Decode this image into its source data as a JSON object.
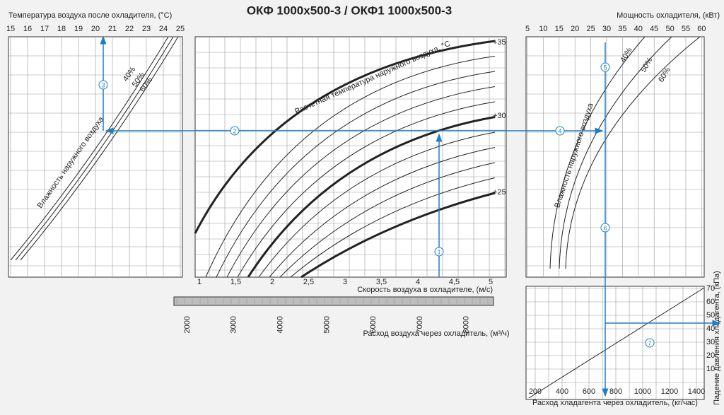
{
  "title": "ОКФ 1000х500-3 / ОКФ1 1000х500-3",
  "panel_temp": {
    "axis_label": "Температура воздуха после охладителя, (°С)",
    "ticks": [
      "15",
      "16",
      "17",
      "18",
      "19",
      "20",
      "21",
      "22",
      "23",
      "24",
      "25"
    ],
    "curve_labels": [
      "40%",
      "50%",
      "60%"
    ],
    "annotation": "Влажность наружного воздуха"
  },
  "panel_speed": {
    "axis_label": "Скорость воздуха в охладителе, (м/с)",
    "ticks": [
      "1",
      "1,5",
      "2",
      "2,5",
      "3",
      "3,5",
      "4",
      "4,5",
      "5"
    ],
    "flow_label": "Расход воздуха через охладитель, (м³/ч)",
    "flow_ticks": [
      "2000",
      "3000",
      "4000",
      "5000",
      "6000",
      "7000",
      "8000"
    ],
    "curve_labels": [
      "+35",
      "+30",
      "+25"
    ],
    "annotation": "Расчетная температура наружного воздуха, °С"
  },
  "panel_power": {
    "axis_label": "Мощность охладителя, (кВт)",
    "ticks": [
      "5",
      "10",
      "15",
      "20",
      "25",
      "30",
      "35",
      "40",
      "45",
      "50",
      "55",
      "60"
    ],
    "curve_labels": [
      "40%",
      "50%",
      "60%"
    ],
    "annotation": "Влажность наружного воздуха"
  },
  "panel_pressure": {
    "y_label": "Падение давления хладагента, (кПа)",
    "yticks": [
      "10",
      "20",
      "30",
      "40",
      "50",
      "60",
      "70"
    ],
    "x_label": "Расход хладагента через охладитель, (кг/час)",
    "xticks": [
      "200",
      "400",
      "600",
      "800",
      "1000",
      "1200",
      "1400"
    ]
  },
  "steps": [
    "1",
    "2",
    "3",
    "4",
    "5",
    "6",
    "7"
  ]
}
